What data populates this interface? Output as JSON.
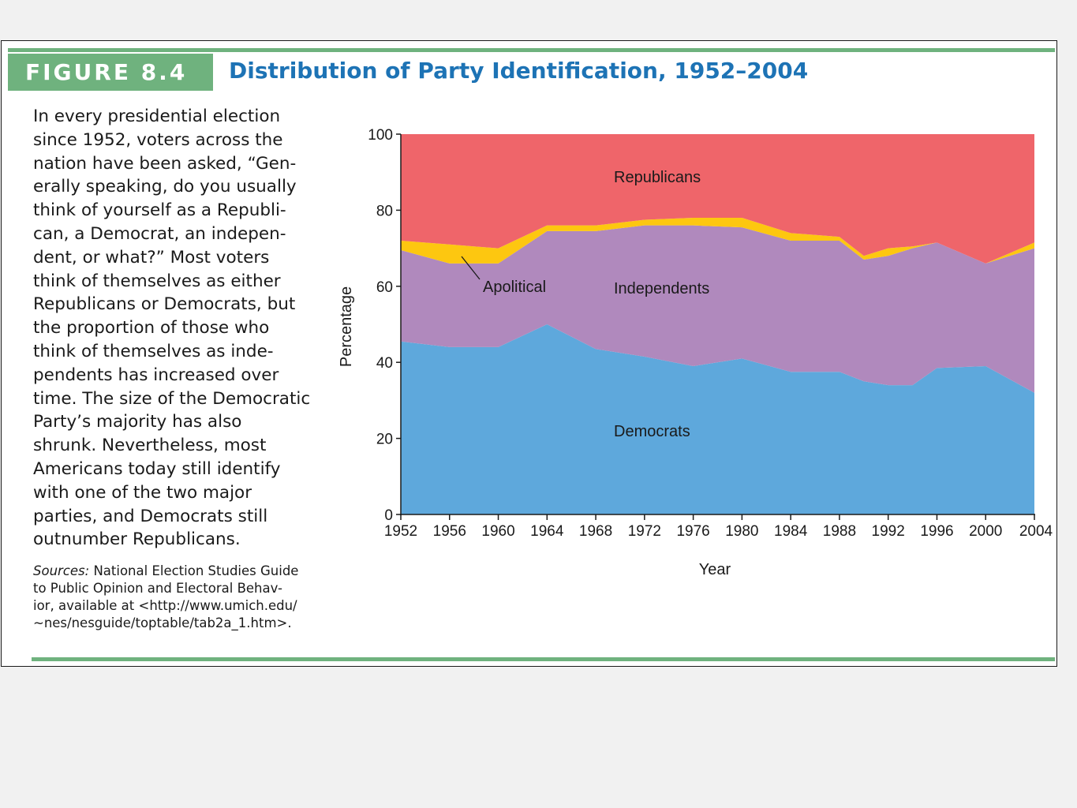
{
  "figure": {
    "label": "FIGURE 8.4",
    "title": "Distribution of Party Identification, 1952–2004"
  },
  "caption_lines": [
    "In every presidential election",
    "since 1952, voters across the",
    "nation have been asked, “Gen-",
    "erally speaking, do you usually",
    "think of yourself as a Republi-",
    "can, a Democrat, an indepen-",
    "dent, or what?” Most voters",
    "think of themselves as either",
    "Republicans or Democrats, but",
    "the proportion of those who",
    "think of themselves as inde-",
    "pendents has increased over",
    "time. The size of the Democratic",
    "Party’s majority has also",
    "shrunk. Nevertheless, most",
    "Americans today still identify",
    "with one of the two major",
    "parties, and Democrats still",
    "outnumber Republicans."
  ],
  "sources": {
    "label": "Sources:",
    "lines": [
      "National Election Studies Guide",
      "to Public Opinion and Electoral Behav-",
      "ior, available at <http://www.umich.edu/",
      "~nes/nesguide/toptable/tab2a_1.htm>."
    ]
  },
  "colors": {
    "democrats": "#5ea8dc",
    "independents": "#b089bd",
    "apolitical": "#fdc710",
    "republicans": "#ef656a",
    "accent": "#6fb27e",
    "title": "#1d73b5"
  },
  "chart_data": {
    "type": "area",
    "stacked": true,
    "xlabel": "Year",
    "ylabel": "Percentage",
    "xlim": [
      1952,
      2004
    ],
    "ylim": [
      0,
      100
    ],
    "xticks": [
      1952,
      1956,
      1960,
      1964,
      1968,
      1972,
      1976,
      1980,
      1984,
      1988,
      1992,
      1996,
      2000,
      2004
    ],
    "yticks": [
      0,
      20,
      40,
      60,
      80,
      100
    ],
    "x": [
      1952,
      1956,
      1958,
      1960,
      1964,
      1968,
      1972,
      1976,
      1980,
      1984,
      1988,
      1990,
      1992,
      1994,
      1996,
      2000,
      2004
    ],
    "series": [
      {
        "name": "Democrats",
        "values": [
          45.5,
          44,
          44,
          44,
          50,
          43.5,
          41.5,
          39,
          41,
          37.5,
          37.5,
          35,
          34,
          34,
          38.5,
          39,
          32
        ]
      },
      {
        "name": "Independents",
        "values": [
          24,
          22,
          22,
          22,
          24.5,
          31,
          34.5,
          37,
          34.5,
          34.5,
          34.5,
          32,
          34,
          36,
          33,
          27,
          38
        ]
      },
      {
        "name": "Apolitical",
        "values": [
          2.5,
          5,
          4.5,
          4,
          1.5,
          1.5,
          1.5,
          2,
          2.5,
          2,
          1,
          1,
          2,
          0.5,
          0,
          0,
          1.5
        ]
      },
      {
        "name": "Republicans",
        "values": [
          28,
          29,
          29.5,
          30,
          24,
          24,
          22.5,
          22,
          22,
          26,
          27,
          32,
          30,
          29.5,
          28.5,
          34,
          28.5
        ]
      }
    ],
    "annotations": [
      "Republicans",
      "Independents",
      "Apolitical",
      "Democrats"
    ]
  }
}
